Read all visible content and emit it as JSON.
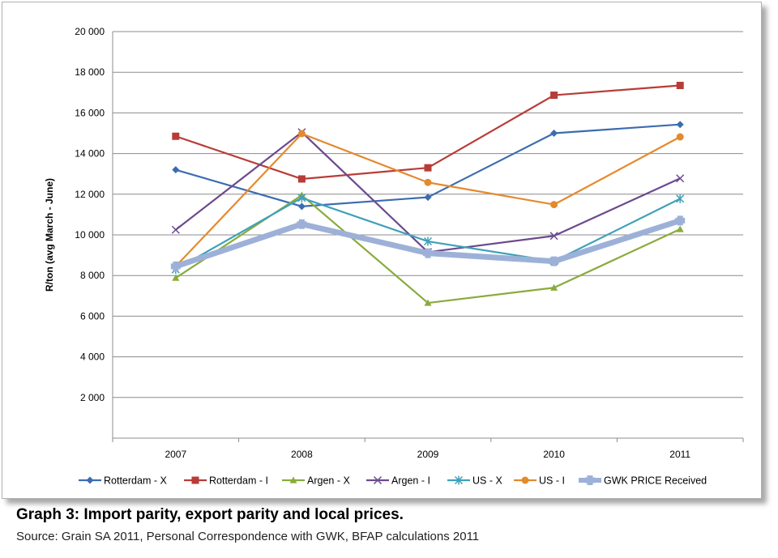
{
  "caption": "Graph 3: Import parity, export parity and local prices.",
  "source": "Source: Grain SA 2011, Personal Correspondence with GWK, BFAP calculations 2011",
  "chart_data": {
    "type": "line",
    "title": "",
    "xlabel": "",
    "ylabel": "R/ton (avg March - June)",
    "categories": [
      "2007",
      "2008",
      "2009",
      "2010",
      "2011"
    ],
    "ylim": [
      0,
      20000
    ],
    "yticks": [
      2000,
      4000,
      6000,
      8000,
      10000,
      12000,
      14000,
      16000,
      18000,
      20000
    ],
    "ytick_labels": [
      "2 000",
      "4 000",
      "6 000",
      "8 000",
      "10 000",
      "12 000",
      "14 000",
      "16 000",
      "18 000",
      "20 000"
    ],
    "grid": true,
    "legend_position": "bottom",
    "series": [
      {
        "name": "Rotterdam - X",
        "color": "#3b6cb0",
        "marker": "diamond",
        "values": [
          13200,
          11400,
          11850,
          15000,
          15430
        ]
      },
      {
        "name": "Rotterdam - I",
        "color": "#b83c37",
        "marker": "square",
        "values": [
          14850,
          12750,
          13300,
          16870,
          17350
        ]
      },
      {
        "name": "Argen - X",
        "color": "#8aab3c",
        "marker": "triangle",
        "values": [
          7880,
          11950,
          6650,
          7400,
          10280
        ]
      },
      {
        "name": "Argen - I",
        "color": "#6c4a8e",
        "marker": "x",
        "values": [
          10250,
          15050,
          9150,
          9950,
          12780
        ]
      },
      {
        "name": "US - X",
        "color": "#3ea1b9",
        "marker": "star",
        "values": [
          8300,
          11820,
          9680,
          8700,
          11780
        ]
      },
      {
        "name": "US - I",
        "color": "#e48a2e",
        "marker": "circle",
        "values": [
          8450,
          14980,
          12580,
          11490,
          14820
        ]
      },
      {
        "name": "GWK PRICE Received",
        "color": "#9db1d8",
        "marker": "plus",
        "values": [
          8450,
          10530,
          9100,
          8700,
          10700
        ]
      }
    ]
  }
}
